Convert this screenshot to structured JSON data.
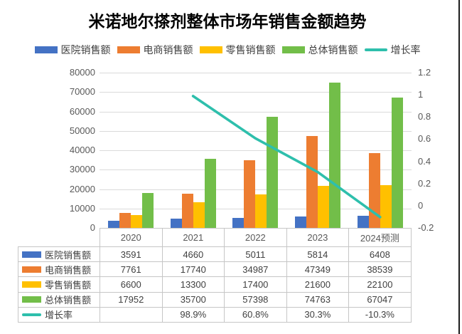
{
  "chart_data": {
    "type": "bar+line",
    "title": "米诺地尔搽剂整体市场年销售金额趋势",
    "categories": [
      "2020",
      "2021",
      "2022",
      "2023",
      "2024预测"
    ],
    "series": [
      {
        "key": "hospital",
        "name": "医院销售额",
        "type": "bar",
        "color": "#4472C4",
        "values": [
          3591,
          4660,
          5011,
          5814,
          6408
        ],
        "table": [
          "3591",
          "4660",
          "5011",
          "5814",
          "6408"
        ]
      },
      {
        "key": "ecommerce",
        "name": "电商销售额",
        "type": "bar",
        "color": "#ED7D31",
        "values": [
          7761,
          17740,
          34987,
          47349,
          38539
        ],
        "table": [
          "7761",
          "17740",
          "34987",
          "47349",
          "38539"
        ]
      },
      {
        "key": "retail",
        "name": "零售销售额",
        "type": "bar",
        "color": "#FFC000",
        "values": [
          6600,
          13300,
          17400,
          21600,
          22100
        ],
        "table": [
          "6600",
          "13300",
          "17400",
          "21600",
          "22100"
        ]
      },
      {
        "key": "total",
        "name": "总体销售额",
        "type": "bar",
        "color": "#72BE49",
        "values": [
          17952,
          35700,
          57398,
          74763,
          67047
        ],
        "table": [
          "17952",
          "35700",
          "57398",
          "74763",
          "67047"
        ]
      },
      {
        "key": "growth",
        "name": "增长率",
        "type": "line",
        "color": "#2EBFAC",
        "values": [
          null,
          0.989,
          0.608,
          0.303,
          -0.103
        ],
        "table": [
          "",
          "98.9%",
          "60.8%",
          "30.3%",
          "-10.3%"
        ]
      }
    ],
    "left_axis": {
      "min": 0,
      "max": 80000,
      "step": 10000,
      "ticks_top_to_bottom": [
        "80000",
        "70000",
        "60000",
        "50000",
        "40000",
        "30000",
        "20000",
        "10000",
        "0"
      ]
    },
    "right_axis": {
      "min": -0.2,
      "max": 1.2,
      "step": 0.2,
      "ticks_top_to_bottom": [
        "1.2",
        "1",
        "0.8",
        "0.6",
        "0.4",
        "0.2",
        "0",
        "-0.2"
      ]
    },
    "legend_position": "top",
    "grid": true,
    "data_table_below": true
  },
  "colors": {
    "gridline": "#DADADA",
    "table_border": "#C6C6C6",
    "axis_text": "#595959",
    "table_text": "#404040",
    "title_text": "#000000",
    "background": "#FFFFFF",
    "window_edge": "#1D1D1D"
  }
}
